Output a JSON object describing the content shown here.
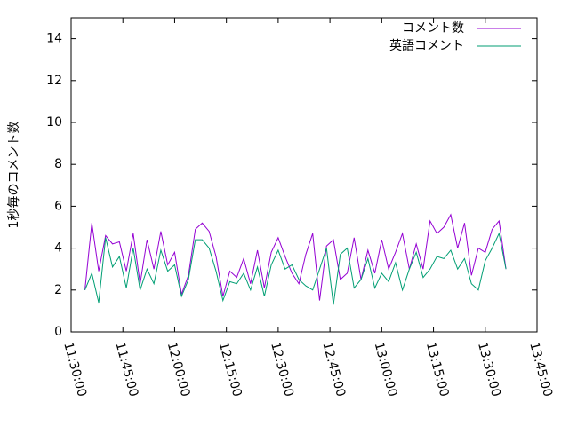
{
  "chart_data": {
    "type": "line",
    "ylabel": "1秒毎のコメント数",
    "xlim": [
      41400,
      49500
    ],
    "xticks": [
      {
        "value": 41400,
        "label": "11:30:00"
      },
      {
        "value": 42300,
        "label": "11:45:00"
      },
      {
        "value": 43200,
        "label": "12:00:00"
      },
      {
        "value": 44100,
        "label": "12:15:00"
      },
      {
        "value": 45000,
        "label": "12:30:00"
      },
      {
        "value": 45900,
        "label": "12:45:00"
      },
      {
        "value": 46800,
        "label": "13:00:00"
      },
      {
        "value": 47700,
        "label": "13:15:00"
      },
      {
        "value": 48600,
        "label": "13:30:00"
      },
      {
        "value": 49500,
        "label": "13:45:00"
      }
    ],
    "ylim": [
      0,
      15
    ],
    "yticks": [
      0,
      2,
      4,
      6,
      8,
      10,
      12,
      14
    ],
    "legend": "top-right",
    "x": [
      41640,
      41760,
      41880,
      42000,
      42120,
      42240,
      42360,
      42480,
      42600,
      42720,
      42840,
      42960,
      43080,
      43200,
      43320,
      43440,
      43560,
      43680,
      43800,
      43920,
      44040,
      44160,
      44280,
      44400,
      44520,
      44640,
      44760,
      44880,
      45000,
      45120,
      45240,
      45360,
      45480,
      45600,
      45720,
      45840,
      45960,
      46080,
      46200,
      46320,
      46440,
      46560,
      46680,
      46800,
      46920,
      47040,
      47160,
      47280,
      47400,
      47520,
      47640,
      47760,
      47880,
      48000,
      48120,
      48240,
      48360,
      48480,
      48600,
      48720,
      48840,
      48960
    ],
    "series": [
      {
        "name": "コメント数",
        "color": "#9400d3",
        "values": [
          2.0,
          5.2,
          2.9,
          4.6,
          4.2,
          4.3,
          2.9,
          4.7,
          2.3,
          4.4,
          3.0,
          4.8,
          3.2,
          3.8,
          1.8,
          2.7,
          4.9,
          5.2,
          4.8,
          3.6,
          1.7,
          2.9,
          2.6,
          3.5,
          2.3,
          3.9,
          2.1,
          3.8,
          4.5,
          3.6,
          2.8,
          2.3,
          3.7,
          4.7,
          1.5,
          4.1,
          4.4,
          2.5,
          2.8,
          4.5,
          2.5,
          3.9,
          2.8,
          4.4,
          3.0,
          3.8,
          4.7,
          3.0,
          4.2,
          3.0,
          5.3,
          4.7,
          5.0,
          5.6,
          4.0,
          5.2,
          2.7,
          4.0,
          3.8,
          4.9,
          5.3,
          3.0
        ]
      },
      {
        "name": "英語コメント",
        "color": "#009e73",
        "values": [
          2.0,
          2.8,
          1.4,
          4.5,
          3.1,
          3.6,
          2.1,
          4.0,
          2.0,
          3.0,
          2.3,
          3.9,
          2.9,
          3.2,
          1.7,
          2.5,
          4.4,
          4.4,
          4.0,
          2.9,
          1.5,
          2.4,
          2.3,
          2.8,
          2.0,
          3.1,
          1.7,
          3.2,
          3.9,
          3.0,
          3.2,
          2.5,
          2.2,
          2.0,
          3.0,
          4.0,
          1.3,
          3.7,
          4.0,
          2.1,
          2.5,
          3.5,
          2.1,
          2.8,
          2.4,
          3.3,
          2.0,
          3.0,
          3.8,
          2.6,
          3.0,
          3.6,
          3.5,
          3.9,
          3.0,
          3.5,
          2.3,
          2.0,
          3.4,
          4.0,
          4.7,
          3.0
        ]
      }
    ]
  }
}
